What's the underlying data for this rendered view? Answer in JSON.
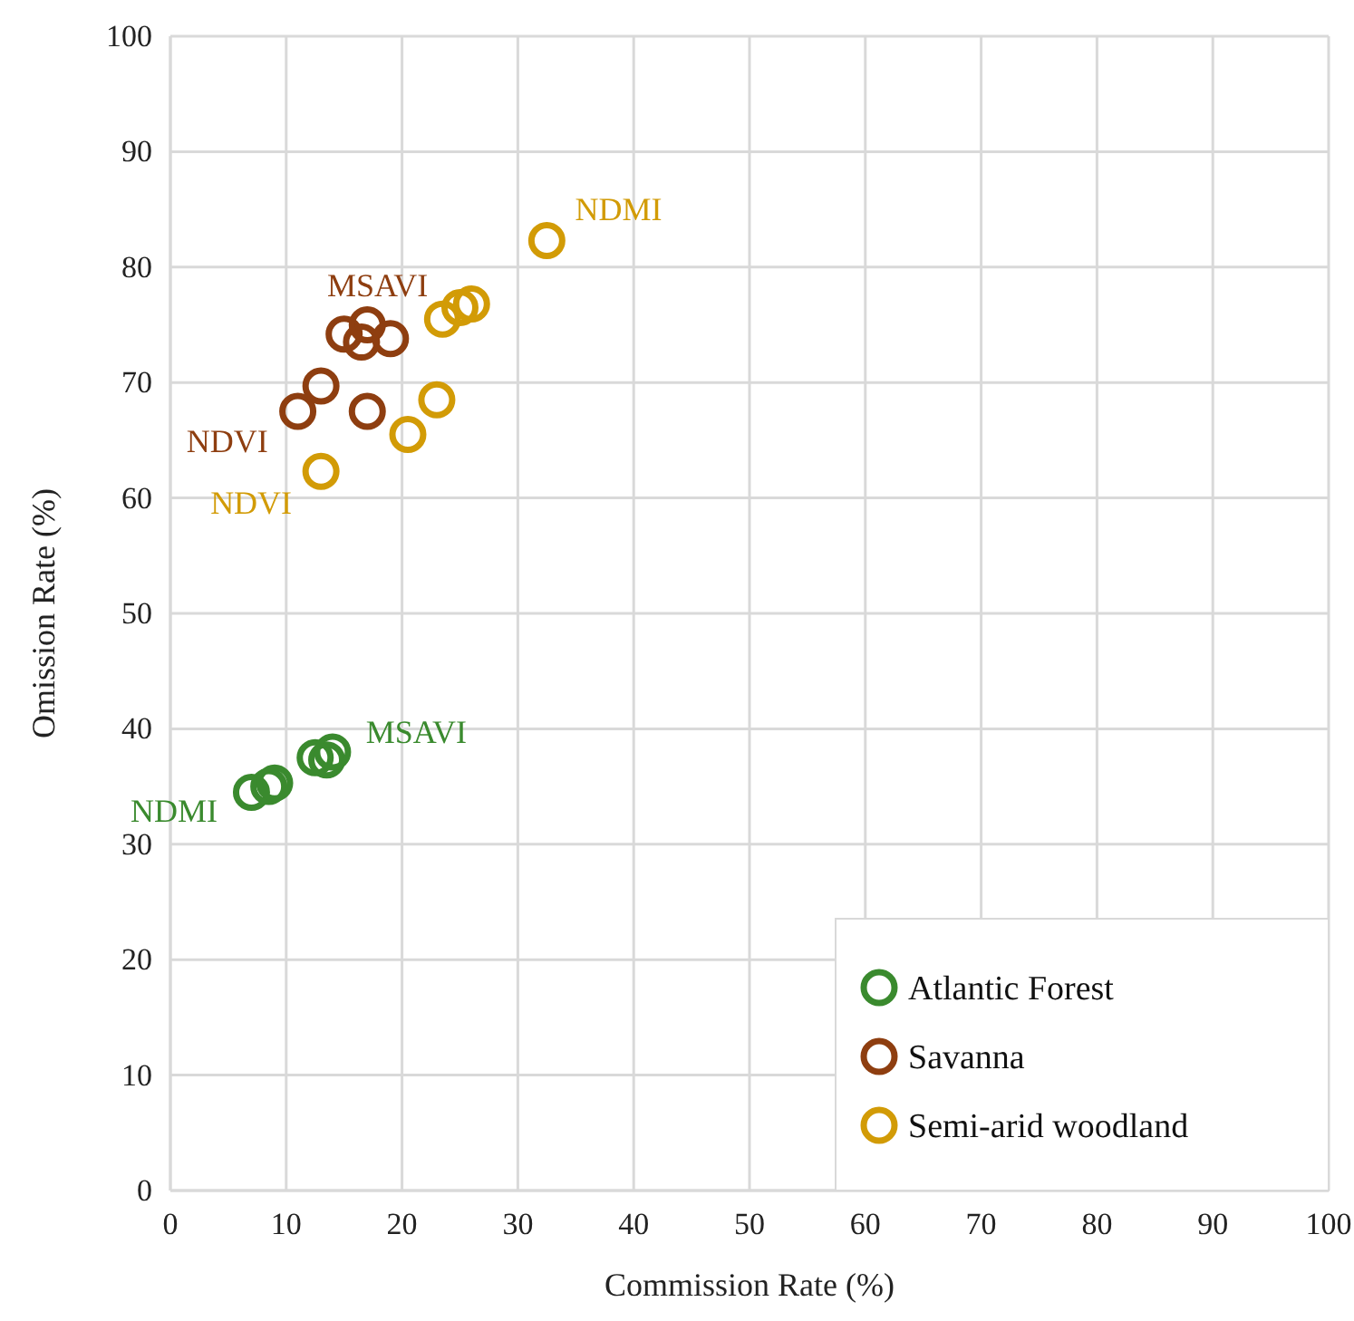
{
  "chart_data": {
    "type": "scatter",
    "xlabel": "Commission Rate (%)",
    "ylabel": "Omission Rate (%)",
    "xlim": [
      0,
      100
    ],
    "ylim": [
      0,
      100
    ],
    "xticks": [
      0,
      10,
      20,
      30,
      40,
      50,
      60,
      70,
      80,
      90,
      100
    ],
    "yticks": [
      0,
      10,
      20,
      30,
      40,
      50,
      60,
      70,
      80,
      90,
      100
    ],
    "grid": true,
    "legend": "bottom right",
    "marker": "circle",
    "series": [
      {
        "name": "Atlantic Forest",
        "color": "#3a8a2e",
        "x": [
          7,
          8.5,
          9,
          12.5,
          13.5,
          14
        ],
        "values": [
          34.5,
          35,
          35.3,
          37.5,
          37.3,
          38
        ]
      },
      {
        "name": "Savanna",
        "color": "#8e3e10",
        "x": [
          11,
          13,
          17,
          15,
          16.5,
          17,
          19
        ],
        "values": [
          67.5,
          69.7,
          67.5,
          74.2,
          73.5,
          75,
          73.8
        ]
      },
      {
        "name": "Semi-arid woodland",
        "color": "#d29b06",
        "x": [
          13,
          20.5,
          23,
          23.5,
          25,
          26,
          32.5
        ],
        "values": [
          62.3,
          65.5,
          68.5,
          75.5,
          76.5,
          76.8,
          82.3
        ]
      }
    ],
    "annotations": [
      {
        "text": "NDMI",
        "x": 7,
        "y": 34.5
      },
      {
        "text": "MSAVI",
        "x": 14,
        "y": 38
      },
      {
        "text": "MSAVI",
        "x": 17,
        "y": 75
      },
      {
        "text": "NDVI",
        "x": 11,
        "y": 67.5
      },
      {
        "text": "NDVI",
        "x": 13,
        "y": 62.3
      },
      {
        "text": "NDMI",
        "x": 32.5,
        "y": 82.3
      }
    ]
  }
}
